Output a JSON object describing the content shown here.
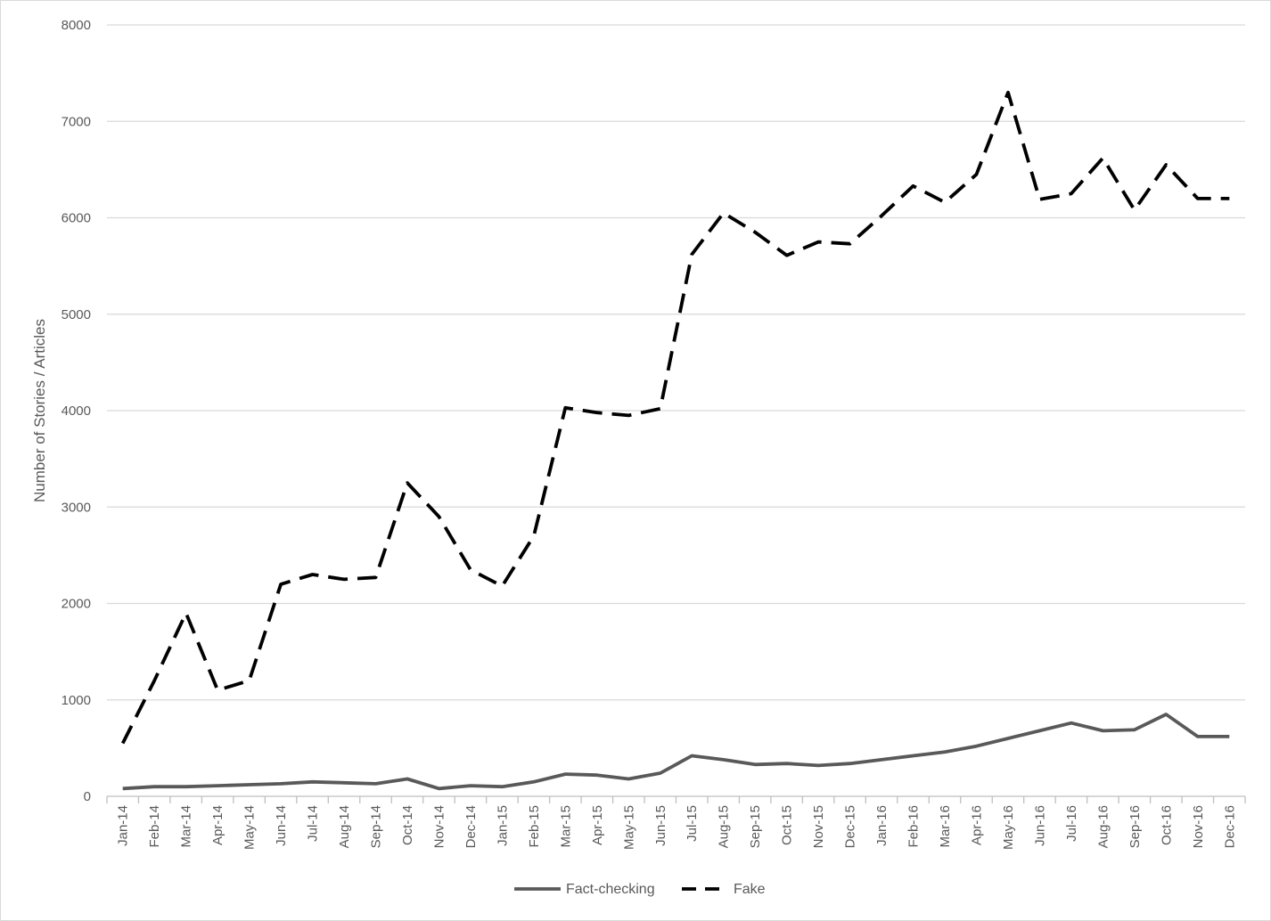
{
  "chart_data": {
    "type": "line",
    "title": "",
    "xlabel": "",
    "ylabel": "Number of Stories / Articles",
    "ylim": [
      0,
      8000
    ],
    "yticks": [
      "0",
      "1000",
      "2000",
      "3000",
      "4000",
      "5000",
      "6000",
      "7000",
      "8000"
    ],
    "grid": true,
    "legend_position": "bottom",
    "categories": [
      "Jan-14",
      "Feb-14",
      "Mar-14",
      "Apr-14",
      "May-14",
      "Jun-14",
      "Jul-14",
      "Aug-14",
      "Sep-14",
      "Oct-14",
      "Nov-14",
      "Dec-14",
      "Jan-15",
      "Feb-15",
      "Mar-15",
      "Apr-15",
      "May-15",
      "Jun-15",
      "Jul-15",
      "Aug-15",
      "Sep-15",
      "Oct-15",
      "Nov-15",
      "Dec-15",
      "Jan-16",
      "Feb-16",
      "Mar-16",
      "Apr-16",
      "May-16",
      "Jun-16",
      "Jul-16",
      "Aug-16",
      "Sep-16",
      "Oct-16",
      "Nov-16",
      "Dec-16"
    ],
    "series": [
      {
        "name": "Fact-checking",
        "style": "solid",
        "color": "#595959",
        "values": [
          80,
          100,
          100,
          110,
          120,
          130,
          150,
          140,
          130,
          180,
          80,
          110,
          100,
          150,
          230,
          220,
          180,
          240,
          420,
          380,
          330,
          340,
          320,
          340,
          380,
          420,
          460,
          520,
          600,
          680,
          760,
          680,
          690,
          850,
          620,
          620
        ]
      },
      {
        "name": "Fake",
        "style": "dashed",
        "color": "#000000",
        "values": [
          550,
          1200,
          1900,
          1100,
          1200,
          2200,
          2300,
          2250,
          2270,
          3250,
          2900,
          2350,
          2180,
          2700,
          4030,
          3980,
          3950,
          4020,
          5620,
          6050,
          5850,
          5610,
          5750,
          5730,
          6020,
          6330,
          6160,
          6450,
          7300,
          6190,
          6250,
          6620,
          6080,
          6550,
          6200,
          6200
        ]
      }
    ]
  }
}
